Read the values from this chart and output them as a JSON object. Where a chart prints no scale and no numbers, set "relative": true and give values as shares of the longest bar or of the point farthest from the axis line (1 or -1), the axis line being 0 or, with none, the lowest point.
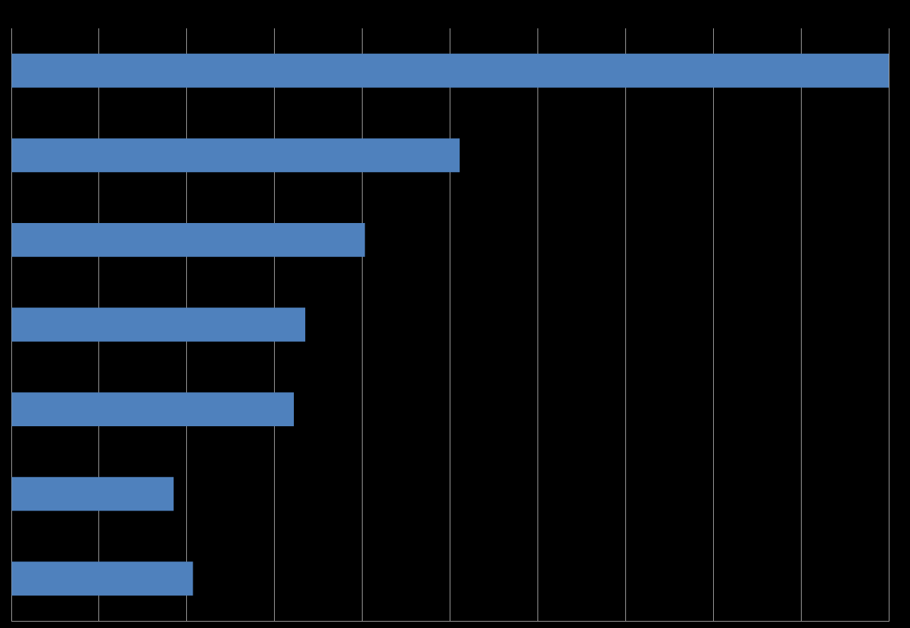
{
  "chart_data": {
    "type": "bar",
    "orientation": "horizontal",
    "relative": true,
    "grid": "x",
    "categories": [
      null,
      null,
      null,
      null,
      null,
      null,
      null
    ],
    "values": [
      1,
      0.511,
      0.403,
      0.335,
      0.322,
      0.185,
      0.207
    ],
    "color": "#4f81bd"
  }
}
